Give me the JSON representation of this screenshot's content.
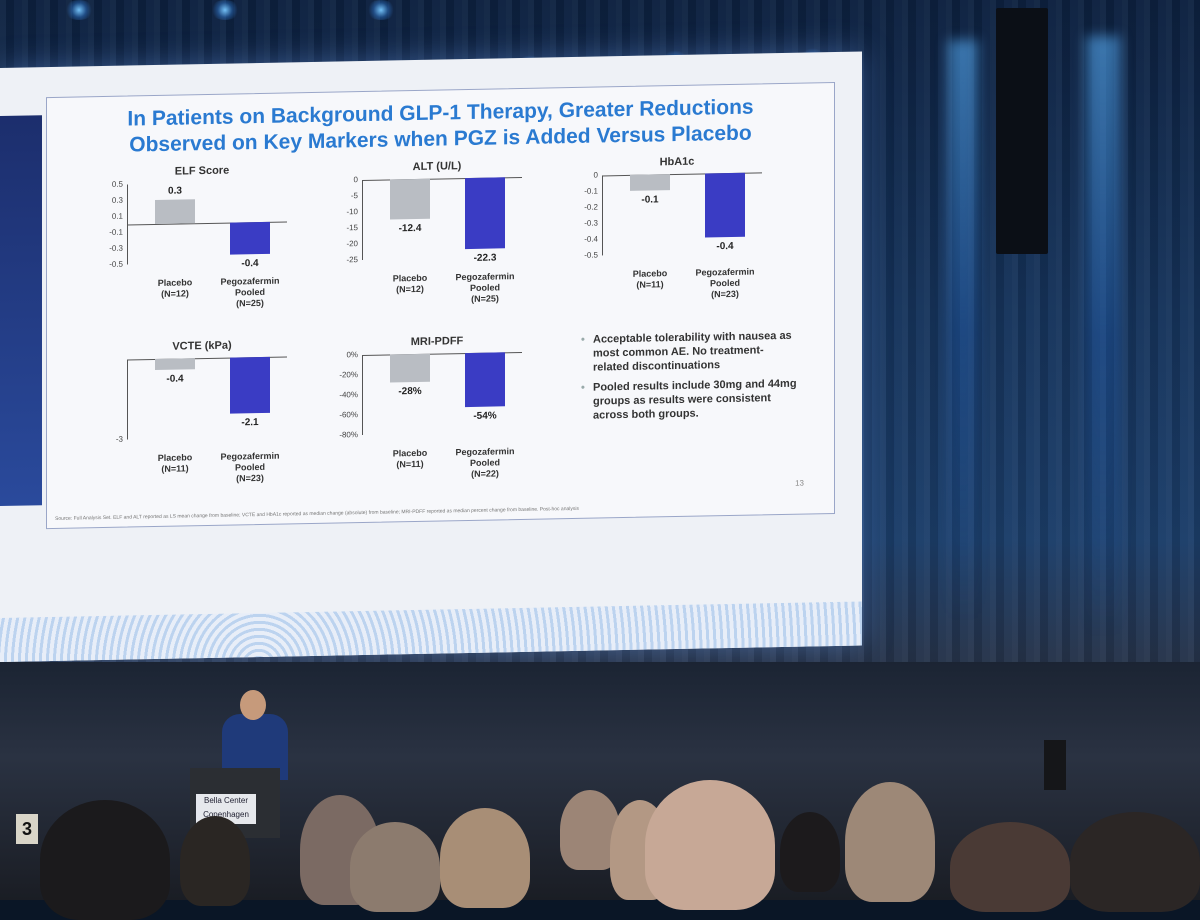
{
  "slide": {
    "title_line1": "In Patients on Background GLP-1 Therapy, Greater Reductions",
    "title_line2": "Observed on Key Markers when PGZ is Added Versus Placebo",
    "page_number": "13",
    "source_note": "Source: Full Analysis Set. ELF and ALT reported as LS mean change from baseline; VCTE and HbA1c reported as median change (absolute) from baseline; MRI-PDFF reported as median percent change from baseline. Post-hoc analysis",
    "bullets": [
      "Acceptable tolerability with nausea as most common AE.  No treatment-related discontinuations",
      "Pooled results include 30mg and 44mg groups as results were consistent across both groups."
    ]
  },
  "room": {
    "podium_sign": "Bella Center Copenhagen",
    "section_sign": "3"
  },
  "chart_data": [
    {
      "type": "bar",
      "title": "ELF Score",
      "categories": [
        "Placebo (N=12)",
        "Pegozafermin Pooled (N=25)"
      ],
      "values": [
        0.3,
        -0.4
      ],
      "value_labels": [
        "0.3",
        "-0.4"
      ],
      "y_ticks": [
        "0.5",
        "0.3",
        "0.1",
        "-0.1",
        "-0.3",
        "-0.5"
      ],
      "ylim": [
        -0.5,
        0.5
      ],
      "x_labels": [
        [
          "Placebo",
          "(N=12)"
        ],
        [
          "Pegozafermin",
          "Pooled",
          "(N=25)"
        ]
      ]
    },
    {
      "type": "bar",
      "title": "ALT (U/L)",
      "categories": [
        "Placebo (N=12)",
        "Pegozafermin Pooled (N=25)"
      ],
      "values": [
        -12.4,
        -22.3
      ],
      "value_labels": [
        "-12.4",
        "-22.3"
      ],
      "y_ticks": [
        "0",
        "-5",
        "-10",
        "-15",
        "-20",
        "-25"
      ],
      "ylim": [
        -25,
        0
      ],
      "x_labels": [
        [
          "Placebo",
          "(N=12)"
        ],
        [
          "Pegozafermin",
          "Pooled",
          "(N=25)"
        ]
      ]
    },
    {
      "type": "bar",
      "title": "HbA1c",
      "categories": [
        "Placebo (N=11)",
        "Pegozafermin Pooled (N=23)"
      ],
      "values": [
        -0.1,
        -0.4
      ],
      "value_labels": [
        "-0.1",
        "-0.4"
      ],
      "y_ticks": [
        "0",
        "-0.1",
        "-0.2",
        "-0.3",
        "-0.4",
        "-0.5"
      ],
      "ylim": [
        -0.5,
        0
      ],
      "x_labels": [
        [
          "Placebo",
          "(N=11)"
        ],
        [
          "Pegozafermin",
          "Pooled",
          "(N=23)"
        ]
      ]
    },
    {
      "type": "bar",
      "title": "VCTE (kPa)",
      "categories": [
        "Placebo (N=11)",
        "Pegozafermin Pooled (N=23)"
      ],
      "values": [
        -0.4,
        -2.1
      ],
      "value_labels": [
        "-0.4",
        "-2.1"
      ],
      "y_ticks": [
        "-3"
      ],
      "ylim": [
        -3,
        0
      ],
      "x_labels": [
        [
          "Placebo",
          "(N=11)"
        ],
        [
          "Pegozafermin",
          "Pooled",
          "(N=23)"
        ]
      ]
    },
    {
      "type": "bar",
      "title": "MRI-PDFF",
      "categories": [
        "Placebo (N=11)",
        "Pegozafermin Pooled (N=22)"
      ],
      "values": [
        -28,
        -54
      ],
      "value_labels": [
        "-28%",
        "-54%"
      ],
      "y_ticks": [
        "0%",
        "-20%",
        "-40%",
        "-60%",
        "-80%"
      ],
      "ylim": [
        -80,
        0
      ],
      "x_labels": [
        [
          "Placebo",
          "(N=11)"
        ],
        [
          "Pegozafermin",
          "Pooled",
          "(N=22)"
        ]
      ]
    }
  ],
  "colors": {
    "title_blue": "#2a7ad1",
    "placebo_bar": "#b9bdc3",
    "pegozafermin_bar": "#3a3cc4"
  }
}
